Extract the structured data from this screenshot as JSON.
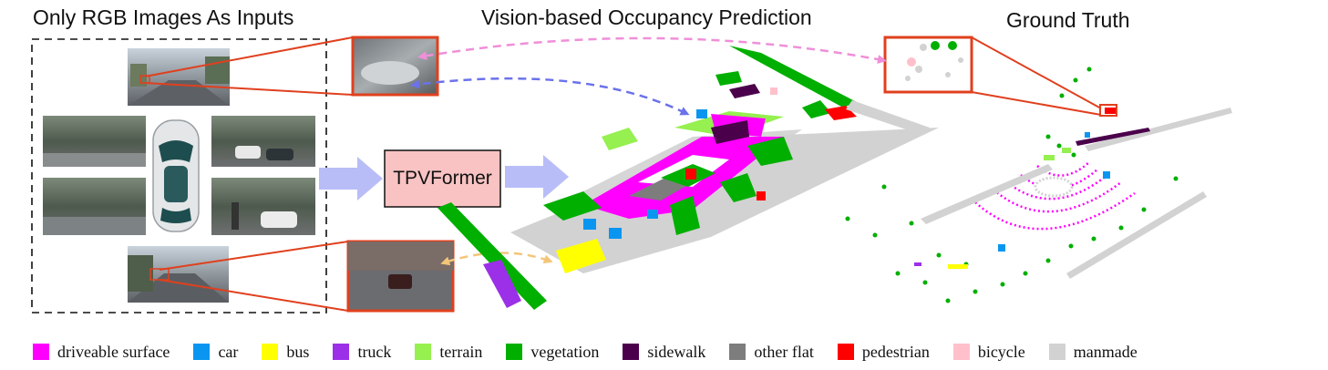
{
  "headings": {
    "inputs": "Only RGB Images As Inputs",
    "prediction": "Vision-based Occupancy Prediction",
    "ground_truth": "Ground Truth"
  },
  "model_box": {
    "label": "TPVFormer",
    "fill": "#f9c3c3"
  },
  "colors": {
    "highlight_box": "#e0401e",
    "arrow_flow": "#b9bdf7",
    "arrow_pink": "#ef8fd8",
    "arrow_blue": "#6b72ea",
    "arrow_yellow": "#f3c679"
  },
  "legend": [
    {
      "label": "driveable surface",
      "color": "#ff00ff"
    },
    {
      "label": "car",
      "color": "#0a96f0"
    },
    {
      "label": "bus",
      "color": "#ffff00"
    },
    {
      "label": "truck",
      "color": "#9b30e8"
    },
    {
      "label": "terrain",
      "color": "#96f050"
    },
    {
      "label": "vegetation",
      "color": "#00af00"
    },
    {
      "label": "sidewalk",
      "color": "#4b004b"
    },
    {
      "label": "other flat",
      "color": "#7d7d7d"
    },
    {
      "label": "pedestrian",
      "color": "#ff0000"
    },
    {
      "label": "bicycle",
      "color": "#ffc0cb"
    },
    {
      "label": "manmade",
      "color": "#d2d2d2"
    }
  ]
}
